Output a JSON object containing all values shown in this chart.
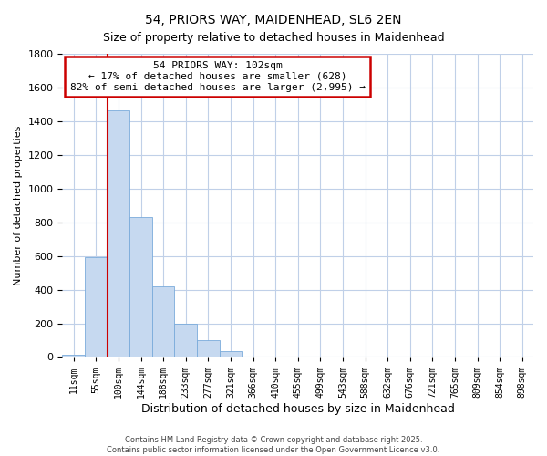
{
  "title": "54, PRIORS WAY, MAIDENHEAD, SL6 2EN",
  "subtitle": "Size of property relative to detached houses in Maidenhead",
  "xlabel": "Distribution of detached houses by size in Maidenhead",
  "ylabel": "Number of detached properties",
  "bin_labels": [
    "11sqm",
    "55sqm",
    "100sqm",
    "144sqm",
    "188sqm",
    "233sqm",
    "277sqm",
    "321sqm",
    "366sqm",
    "410sqm",
    "455sqm",
    "499sqm",
    "543sqm",
    "588sqm",
    "632sqm",
    "676sqm",
    "721sqm",
    "765sqm",
    "809sqm",
    "854sqm",
    "898sqm"
  ],
  "bar_values": [
    15,
    590,
    1465,
    830,
    420,
    200,
    100,
    35,
    5,
    1,
    0,
    0,
    0,
    0,
    0,
    0,
    0,
    0,
    0,
    0,
    0
  ],
  "bar_color": "#c6d9f0",
  "bar_edge_color": "#7aabdb",
  "vline_color": "#cc0000",
  "annotation_title": "54 PRIORS WAY: 102sqm",
  "annotation_line1": "← 17% of detached houses are smaller (628)",
  "annotation_line2": "82% of semi-detached houses are larger (2,995) →",
  "annotation_box_color": "#cc0000",
  "annotation_bg": "#ffffff",
  "ylim": [
    0,
    1800
  ],
  "yticks": [
    0,
    200,
    400,
    600,
    800,
    1000,
    1200,
    1400,
    1600,
    1800
  ],
  "footer_line1": "Contains HM Land Registry data © Crown copyright and database right 2025.",
  "footer_line2": "Contains public sector information licensed under the Open Government Licence v3.0.",
  "bg_color": "#ffffff",
  "grid_color": "#c0d0e8"
}
